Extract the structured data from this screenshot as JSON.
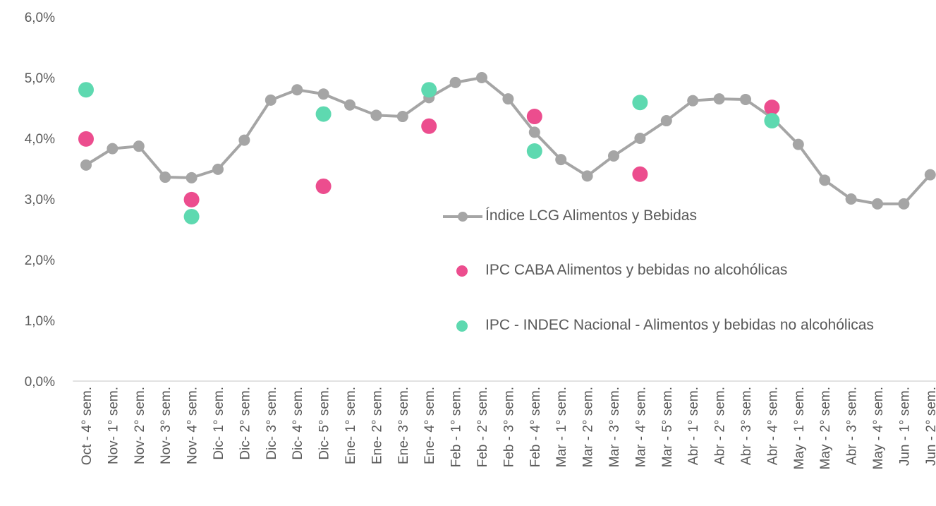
{
  "chart_data": {
    "type": "line",
    "categories": [
      "Oct - 4° sem.",
      "Nov- 1° sem.",
      "Nov- 2° sem.",
      "Nov- 3° sem.",
      "Nov- 4° sem.",
      "Dic- 1° sem.",
      "Dic- 2° sem.",
      "Dic- 3° sem.",
      "Dic- 4° sem.",
      "Dic- 5° sem.",
      "Ene- 1° sem.",
      "Ene- 2° sem.",
      "Ene- 3° sem.",
      "Ene- 4° sem.",
      "Feb - 1° sem.",
      "Feb - 2° sem.",
      "Feb - 3° sem.",
      "Feb - 4° sem.",
      "Mar - 1° sem.",
      "Mar - 2° sem.",
      "Mar - 3° sem.",
      "Mar - 4° sem.",
      "Mar - 5° sem.",
      "Abr - 1° sem.",
      "Abr - 2° sem.",
      "Abr - 3° sem.",
      "Abr - 4° sem.",
      "May - 1° sem.",
      "May - 2° sem.",
      "Abr - 3° sem.",
      "May - 4° sem.",
      "Jun - 1° sem.",
      "Jun - 2° sem."
    ],
    "series": [
      {
        "name": "Índice LCG Alimentos y Bebidas",
        "color": "#a5a5a5",
        "mode": "line",
        "values": [
          3.56,
          3.83,
          3.87,
          3.36,
          3.35,
          3.49,
          3.97,
          4.63,
          4.8,
          4.73,
          4.55,
          4.38,
          4.36,
          4.67,
          4.92,
          5.0,
          4.65,
          4.1,
          3.65,
          3.38,
          3.71,
          4.0,
          4.29,
          4.62,
          4.65,
          4.64,
          4.34,
          3.9,
          3.31,
          3.0,
          2.92,
          2.92,
          3.4
        ]
      },
      {
        "name": "IPC CABA Alimentos y bebidas no alcohólicas",
        "color": "#ec4d8e",
        "mode": "markers",
        "values": [
          3.99,
          null,
          null,
          null,
          2.99,
          null,
          null,
          null,
          null,
          3.21,
          null,
          null,
          null,
          4.2,
          null,
          null,
          null,
          4.36,
          null,
          null,
          null,
          3.41,
          null,
          null,
          null,
          null,
          4.51,
          null,
          null,
          null,
          null,
          null,
          null
        ]
      },
      {
        "name": "IPC - INDEC Nacional - Alimentos y bebidas no alcohólicas",
        "color": "#5ed9b0",
        "mode": "markers",
        "values": [
          4.8,
          null,
          null,
          null,
          2.71,
          null,
          null,
          null,
          null,
          4.4,
          null,
          null,
          null,
          4.8,
          null,
          null,
          null,
          3.79,
          null,
          null,
          null,
          4.59,
          null,
          null,
          null,
          null,
          4.29,
          null,
          null,
          null,
          null,
          null,
          null
        ]
      }
    ],
    "ylim": [
      0,
      6
    ],
    "yticks": [
      {
        "value": 0,
        "label": "0,0%"
      },
      {
        "value": 1,
        "label": "1,0%"
      },
      {
        "value": 2,
        "label": "2,0%"
      },
      {
        "value": 3,
        "label": "3,0%"
      },
      {
        "value": 4,
        "label": "4,0%"
      },
      {
        "value": 5,
        "label": "5,0%"
      },
      {
        "value": 6,
        "label": "6,0%"
      }
    ],
    "grid": false
  }
}
